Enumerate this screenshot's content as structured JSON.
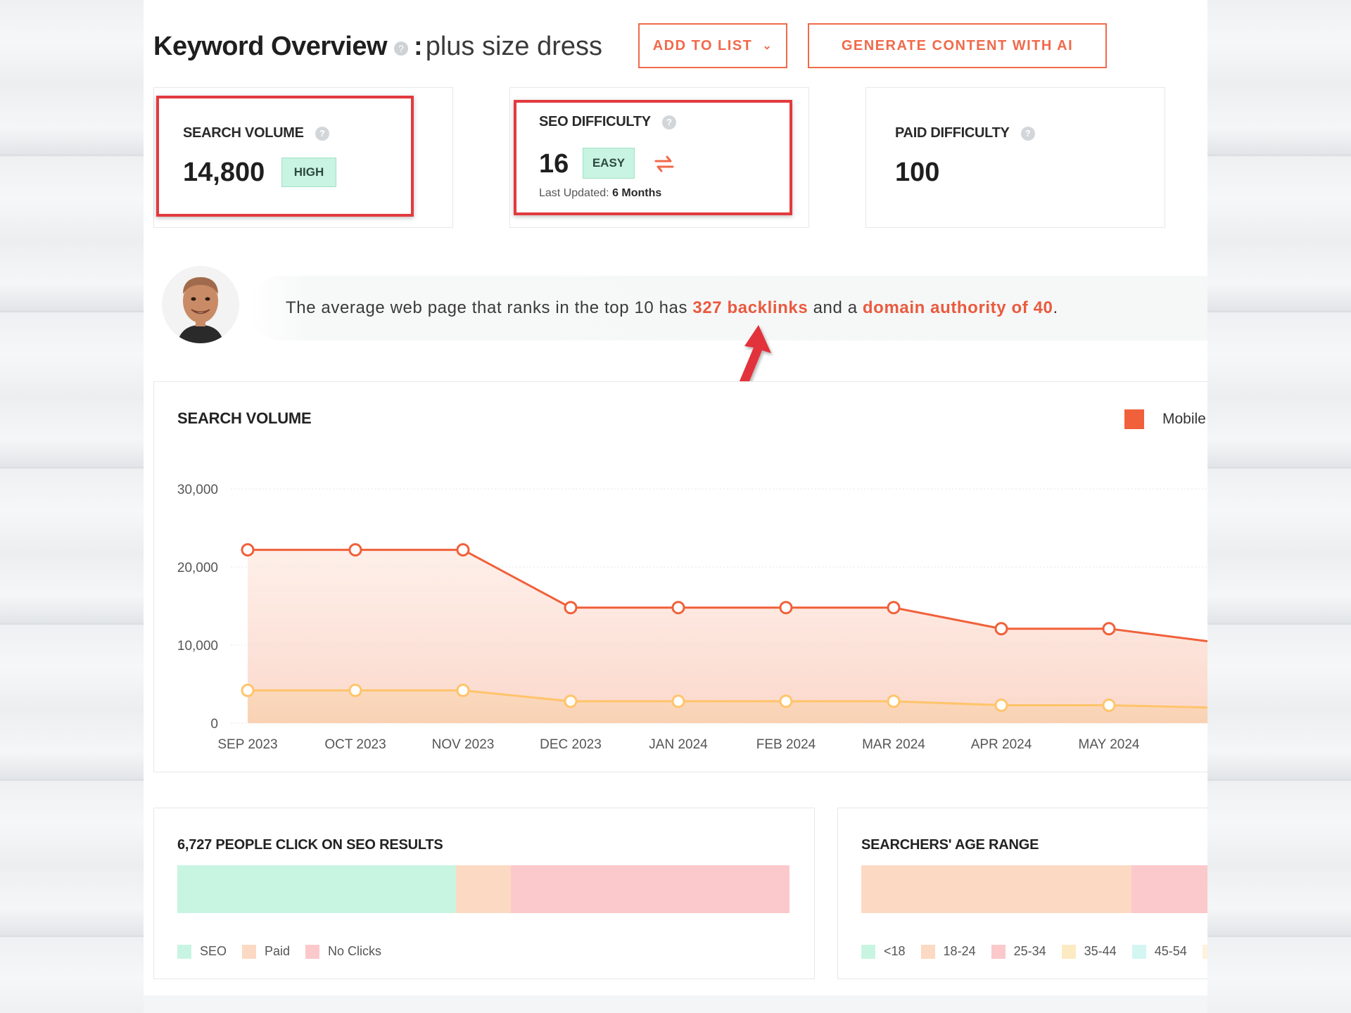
{
  "header": {
    "title": "Keyword Overview",
    "help_icon": "?",
    "colon": ":",
    "keyword": "plus size dress",
    "add_to_list": "ADD TO LIST",
    "add_to_list_chevron": "⌄",
    "generate": "GENERATE CONTENT WITH AI"
  },
  "metrics": {
    "search_volume": {
      "label": "SEARCH VOLUME",
      "value": "14,800",
      "badge": "HIGH"
    },
    "seo_difficulty": {
      "label": "SEO DIFFICULTY",
      "value": "16",
      "badge": "EASY",
      "updated_label": "Last Updated:",
      "updated_value": "6 Months"
    },
    "paid_difficulty": {
      "label": "PAID DIFFICULTY",
      "value": "100"
    }
  },
  "tip": {
    "text_1": "The average web page that ranks in the top 10 has",
    "backlinks": "327 backlinks",
    "text_2": "and a",
    "authority": "domain authority of 40",
    "text_3": "."
  },
  "chart_data": {
    "type": "area",
    "title": "SEARCH VOLUME",
    "legend": [
      "Mobile"
    ],
    "legend_position": "top-right",
    "categories": [
      "SEP 2023",
      "OCT 2023",
      "NOV 2023",
      "DEC 2023",
      "JAN 2024",
      "FEB 2024",
      "MAR 2024",
      "APR 2024",
      "MAY 2024"
    ],
    "series": [
      {
        "color": "#f0603a",
        "values": [
          22200,
          22200,
          22200,
          14800,
          14800,
          14800,
          14800,
          12100,
          12100
        ],
        "continues_to": 10500
      },
      {
        "name": "Mobile",
        "color": "#ffc46b",
        "values": [
          4200,
          4200,
          4200,
          2800,
          2800,
          2800,
          2800,
          2300,
          2300
        ],
        "continues_to": 2000
      }
    ],
    "y_ticks": [
      "30,000",
      "20,000",
      "10,000",
      "0"
    ],
    "ylim": [
      0,
      30000
    ],
    "grid": true
  },
  "clicks": {
    "title": "6,727 PEOPLE CLICK ON SEO RESULTS",
    "segments": [
      {
        "label": "SEO",
        "color": "#c8f5e2",
        "share": 0.455
      },
      {
        "label": "Paid",
        "color": "#fcd9c2",
        "share": 0.09
      },
      {
        "label": "No Clicks",
        "color": "#fbc9cb",
        "share": 0.455
      }
    ]
  },
  "age": {
    "title": "SEARCHERS' AGE RANGE",
    "segments": [
      {
        "color": "#fcd9c2",
        "share": 0.78
      },
      {
        "color": "#fbc9cb",
        "share": 0.22
      }
    ],
    "legend": [
      {
        "label": "<18",
        "color": "#c8f5e2"
      },
      {
        "label": "18-24",
        "color": "#fcd9c2"
      },
      {
        "label": "25-34",
        "color": "#fbc9cb"
      },
      {
        "label": "35-44",
        "color": "#fcebc2"
      },
      {
        "label": "45-54",
        "color": "#d3f6f3"
      },
      {
        "label": "",
        "color": "#fdf3dc"
      }
    ]
  }
}
